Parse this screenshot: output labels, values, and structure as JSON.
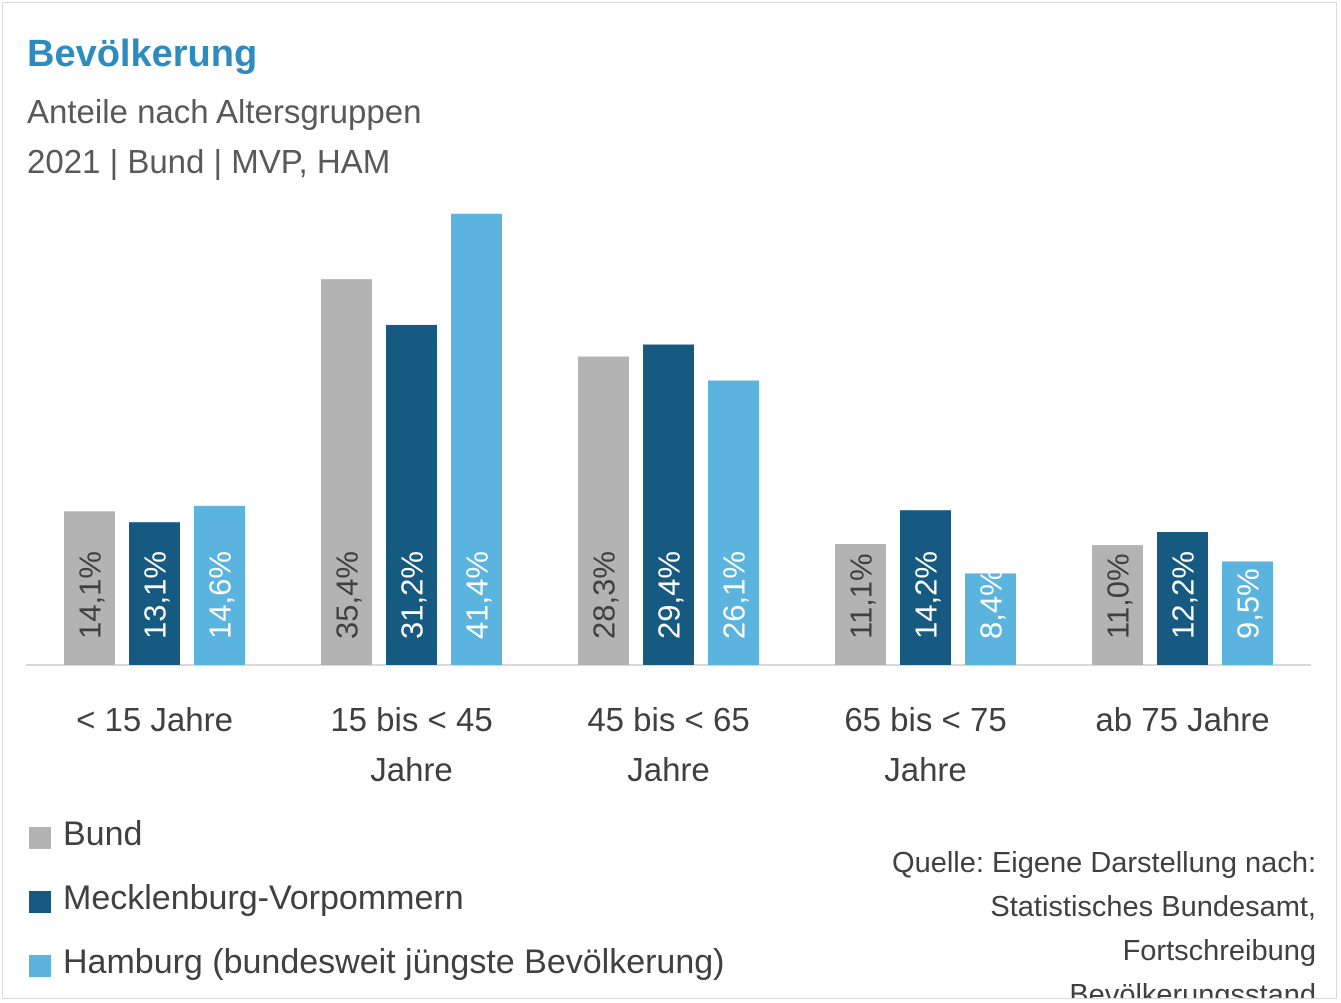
{
  "chart_data": {
    "type": "bar",
    "title": "Bevölkerung",
    "subtitle_lines": [
      "Anteile nach Altersgruppen",
      "2021 | Bund | MVP, HAM"
    ],
    "categories": [
      [
        "< 15 Jahre"
      ],
      [
        "15 bis < 45",
        "Jahre"
      ],
      [
        "45 bis < 65",
        "Jahre"
      ],
      [
        "65 bis < 75",
        "Jahre"
      ],
      [
        "ab 75 Jahre"
      ]
    ],
    "series": [
      {
        "name": "Bund",
        "values": [
          14.1,
          35.4,
          28.3,
          11.1,
          11.0
        ],
        "labels": [
          "14,1%",
          "35,4%",
          "28,3%",
          "11,1%",
          "11,0%"
        ],
        "color": "#b3b3b3",
        "label_color": "#404040"
      },
      {
        "name": "Mecklenburg-Vorpommern",
        "values": [
          13.1,
          31.2,
          29.4,
          14.2,
          12.2
        ],
        "labels": [
          "13,1%",
          "31,2%",
          "29,4%",
          "14,2%",
          "12,2%"
        ],
        "color": "#175a81",
        "label_color": "#ffffff"
      },
      {
        "name": "Hamburg (bundesweit jüngste Bevölkerung)",
        "values": [
          14.6,
          41.4,
          26.1,
          8.4,
          9.5
        ],
        "labels": [
          "14,6%",
          "41,4%",
          "26,1%",
          "8,4%",
          "9,5%"
        ],
        "color": "#5ab4de",
        "label_color": "#ffffff"
      }
    ],
    "ylim": [
      0,
      45
    ],
    "data_labels": "inside, rotated vertical",
    "legend_position": "bottom-left",
    "grid": false
  },
  "source": {
    "lines": [
      "Quelle: Eigene Darstellung nach:",
      "Statistisches Bundesamt,",
      "Fortschreibung",
      "Bevölkerungsstand"
    ]
  }
}
